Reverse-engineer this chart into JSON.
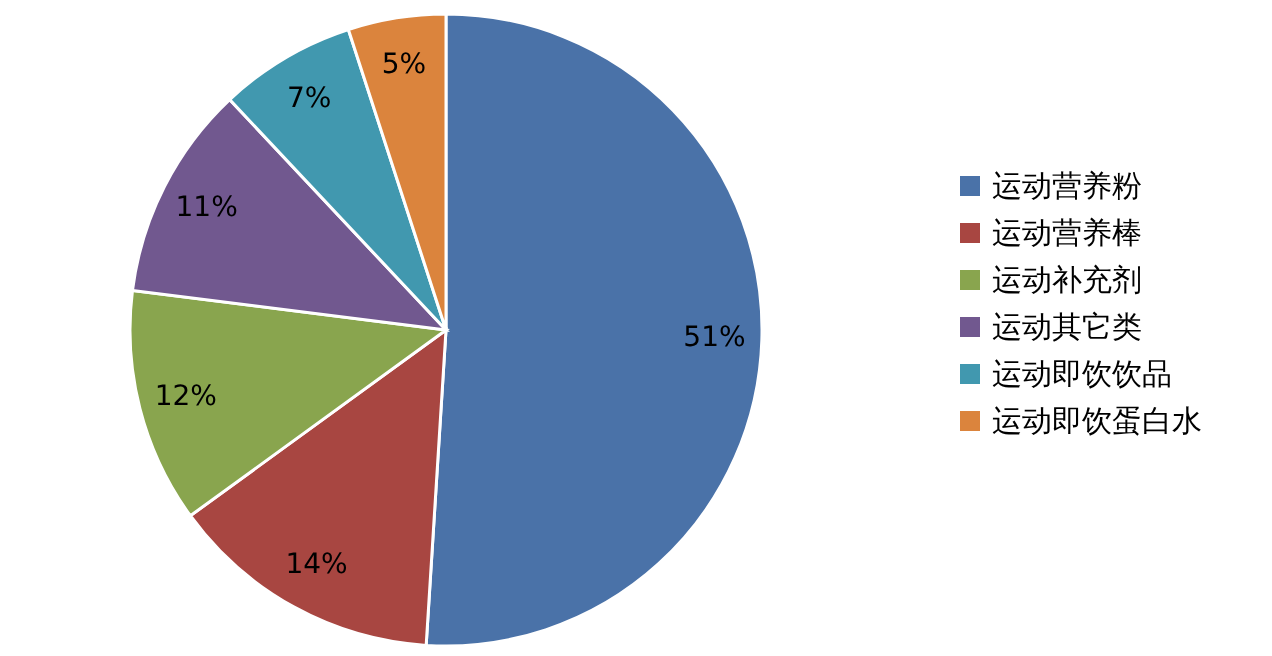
{
  "chart_data": {
    "type": "pie",
    "categories": [
      "运动营养粉",
      "运动营养棒",
      "运动补充剂",
      "运动其它类",
      "运动即饮饮品",
      "运动即饮蛋白水"
    ],
    "values": [
      51,
      14,
      12,
      11,
      7,
      5
    ],
    "colors": [
      "#4a72a8",
      "#a84641",
      "#89a54e",
      "#71588f",
      "#4198af",
      "#db843d"
    ],
    "value_labels": [
      "51%",
      "14%",
      "12%",
      "11%",
      "7%",
      "5%"
    ],
    "legend": "right"
  }
}
